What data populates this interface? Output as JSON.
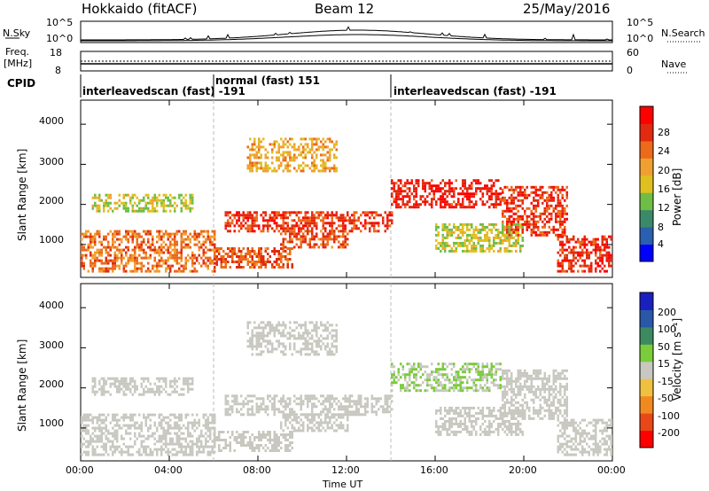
{
  "header": {
    "radar": "Hokkaido (fitACF)",
    "beam": "Beam 12",
    "date": "25/May/2016"
  },
  "top_panels": {
    "nsky_label": "N.Sky",
    "nsky_ticks": [
      "10^5",
      "10^0"
    ],
    "nsearch_label": "N.Search",
    "freq_label_1": "Freq.",
    "freq_label_2": "[MHz]",
    "freq_ticks": [
      "18",
      "8"
    ],
    "nave_label": "Nave",
    "nave_ticks": [
      "60",
      "0"
    ],
    "cpid_label": "CPID",
    "cpid_segments": [
      {
        "name": "interleavedscan (fast) -191",
        "start": 0.0,
        "end": 6.0
      },
      {
        "name": "normal (fast) 151",
        "start": 6.0,
        "end": 14.0
      },
      {
        "name": "interleavedscan (fast) -191",
        "start": 14.0,
        "end": 24.0
      }
    ]
  },
  "axes": {
    "ylabel": "Slant Range [km]",
    "yticks": [
      "1000",
      "2000",
      "3000",
      "4000"
    ],
    "xlabel": "Time UT",
    "xticks": [
      "00:00",
      "04:00",
      "08:00",
      "12:00",
      "16:00",
      "20:00",
      "00:00"
    ]
  },
  "colorbars": {
    "power": {
      "label": "Power [dB]",
      "ticks": [
        "4",
        "8",
        "12",
        "16",
        "20",
        "24",
        "28"
      ],
      "colors": [
        "#0000ff",
        "#2b5fb0",
        "#3a8a6a",
        "#6fbd45",
        "#e0c020",
        "#f0a030",
        "#ec6a1a",
        "#e22a10",
        "#ff0000"
      ]
    },
    "velocity": {
      "label": "Velocity [m s⁻¹]",
      "ticks": [
        "200",
        "100",
        "50",
        "15",
        "-15",
        "-50",
        "-100",
        "-200"
      ],
      "colors": [
        "#1a20c0",
        "#2a58a8",
        "#3d8a60",
        "#7acc3a",
        "#c8c8c0",
        "#f0c040",
        "#f08a20",
        "#e84818",
        "#ff0000"
      ]
    }
  },
  "chart_data": [
    {
      "type": "heatmap",
      "title": "",
      "xlabel": "",
      "ylabel": "Slant Range [km]",
      "quantity": "Power",
      "units": "dB",
      "xlim": [
        0,
        24
      ],
      "ylim": [
        180,
        4600
      ],
      "color_scale": [
        0,
        30
      ],
      "bands": [
        {
          "t0": 0.0,
          "t1": 6.0,
          "r0": 300,
          "r1": 1300,
          "level": 22
        },
        {
          "t0": 6.0,
          "t1": 9.5,
          "r0": 400,
          "r1": 900,
          "level": 24
        },
        {
          "t0": 6.5,
          "t1": 14.0,
          "r0": 1300,
          "r1": 1800,
          "level": 26
        },
        {
          "t0": 9.0,
          "t1": 12.0,
          "r0": 900,
          "r1": 1300,
          "level": 24
        },
        {
          "t0": 14.0,
          "t1": 19.0,
          "r0": 1900,
          "r1": 2600,
          "level": 28
        },
        {
          "t0": 19.0,
          "t1": 22.0,
          "r0": 1200,
          "r1": 2400,
          "level": 26
        },
        {
          "t0": 21.5,
          "t1": 24.0,
          "r0": 300,
          "r1": 1200,
          "level": 27
        },
        {
          "t0": 0.5,
          "t1": 5.0,
          "r0": 1800,
          "r1": 2200,
          "level": 14
        },
        {
          "t0": 7.5,
          "t1": 11.5,
          "r0": 2800,
          "r1": 3600,
          "level": 18
        },
        {
          "t0": 16.0,
          "t1": 20.0,
          "r0": 800,
          "r1": 1500,
          "level": 14
        }
      ]
    },
    {
      "type": "heatmap",
      "title": "",
      "xlabel": "Time UT",
      "ylabel": "Slant Range [km]",
      "quantity": "Velocity",
      "units": "m s-1",
      "xlim": [
        0,
        24
      ],
      "ylim": [
        180,
        4600
      ],
      "color_scale": [
        -200,
        200
      ],
      "bands": [
        {
          "t0": 0.0,
          "t1": 6.0,
          "r0": 300,
          "r1": 1300,
          "level": 0
        },
        {
          "t0": 6.0,
          "t1": 9.5,
          "r0": 400,
          "r1": 900,
          "level": 0
        },
        {
          "t0": 6.5,
          "t1": 14.0,
          "r0": 1300,
          "r1": 1800,
          "level": -5
        },
        {
          "t0": 9.0,
          "t1": 12.0,
          "r0": 900,
          "r1": 1300,
          "level": 0
        },
        {
          "t0": 14.0,
          "t1": 19.0,
          "r0": 1900,
          "r1": 2600,
          "level": 25
        },
        {
          "t0": 19.0,
          "t1": 22.0,
          "r0": 1200,
          "r1": 2400,
          "level": 5
        },
        {
          "t0": 21.5,
          "t1": 24.0,
          "r0": 300,
          "r1": 1200,
          "level": 0
        },
        {
          "t0": 0.5,
          "t1": 5.0,
          "r0": 1800,
          "r1": 2200,
          "level": 0
        },
        {
          "t0": 7.5,
          "t1": 11.5,
          "r0": 2800,
          "r1": 3600,
          "level": 0
        },
        {
          "t0": 16.0,
          "t1": 20.0,
          "r0": 800,
          "r1": 1500,
          "level": 10
        }
      ]
    }
  ]
}
